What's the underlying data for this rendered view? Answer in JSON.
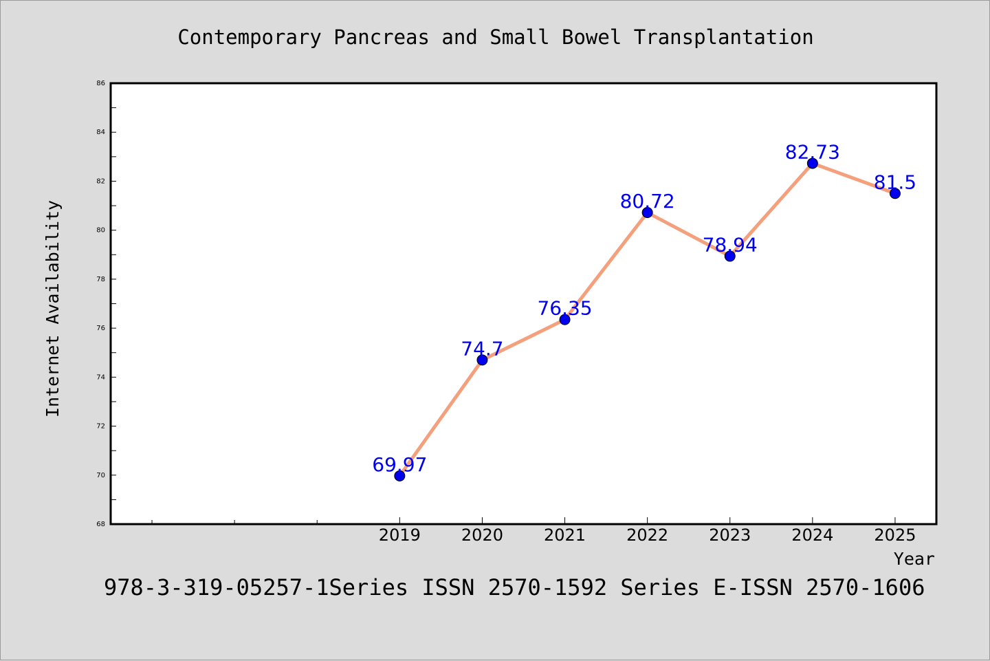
{
  "chart_data": {
    "type": "line",
    "title": "Contemporary Pancreas and Small Bowel Transplantation",
    "xlabel": "Year",
    "ylabel": "Internet Availability",
    "footer": "978-3-319-05257-1Series ISSN 2570-1592 Series E-ISSN 2570-1606",
    "x": [
      "2019",
      "2020",
      "2021",
      "2022",
      "2023",
      "2024",
      "2025"
    ],
    "x_axis_slots": 10,
    "x_first_slot": 3,
    "values": [
      69.97,
      74.7,
      76.35,
      80.72,
      78.94,
      82.73,
      81.5
    ],
    "data_labels": [
      "69.97",
      "74.7",
      "76.35",
      "80.72",
      "78.94",
      "82.73",
      "81.5"
    ],
    "ylim": [
      68,
      86
    ],
    "yticks": [
      "68",
      "70",
      "72",
      "74",
      "76",
      "78",
      "80",
      "82",
      "84",
      "86"
    ],
    "grid": false,
    "legend": "none",
    "colors": {
      "line": "#f4a07c",
      "marker": "#0000ee",
      "data_label": "#0000ee",
      "plot_bg": "#ffffff",
      "page_bg": "#dcdcdc"
    }
  }
}
